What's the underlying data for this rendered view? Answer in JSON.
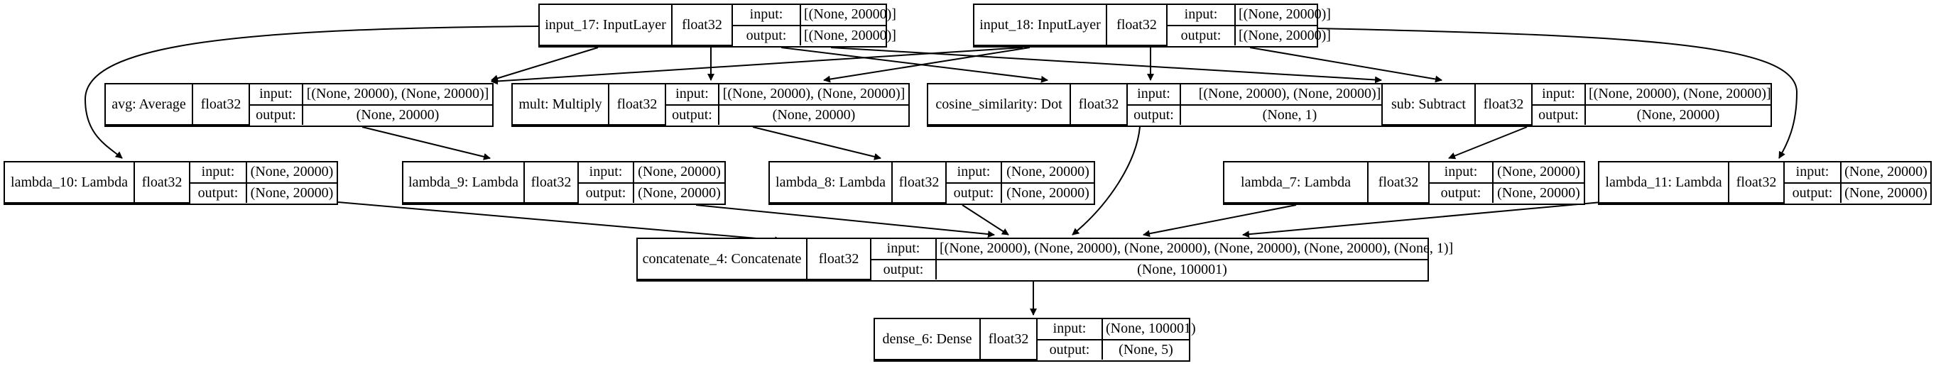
{
  "nodes": {
    "input_17": {
      "name": "input_17: InputLayer",
      "dtype": "float32",
      "in_label": "input:",
      "out_label": "output:",
      "input": "[(None, 20000)]",
      "output": "[(None, 20000)]"
    },
    "input_18": {
      "name": "input_18: InputLayer",
      "dtype": "float32",
      "in_label": "input:",
      "out_label": "output:",
      "input": "[(None, 20000)]",
      "output": "[(None, 20000)]"
    },
    "avg": {
      "name": "avg: Average",
      "dtype": "float32",
      "in_label": "input:",
      "out_label": "output:",
      "input": "[(None, 20000), (None, 20000)]",
      "output": "(None, 20000)"
    },
    "mult": {
      "name": "mult: Multiply",
      "dtype": "float32",
      "in_label": "input:",
      "out_label": "output:",
      "input": "[(None, 20000), (None, 20000)]",
      "output": "(None, 20000)"
    },
    "cosine": {
      "name": "cosine_similarity: Dot",
      "dtype": "float32",
      "in_label": "input:",
      "out_label": "output:",
      "input": "[(None, 20000), (None, 20000)]",
      "output": "(None, 1)"
    },
    "sub": {
      "name": "sub: Subtract",
      "dtype": "float32",
      "in_label": "input:",
      "out_label": "output:",
      "input": "[(None, 20000), (None, 20000)]",
      "output": "(None, 20000)"
    },
    "lambda_10": {
      "name": "lambda_10: Lambda",
      "dtype": "float32",
      "in_label": "input:",
      "out_label": "output:",
      "input": "(None, 20000)",
      "output": "(None, 20000)"
    },
    "lambda_9": {
      "name": "lambda_9: Lambda",
      "dtype": "float32",
      "in_label": "input:",
      "out_label": "output:",
      "input": "(None, 20000)",
      "output": "(None, 20000)"
    },
    "lambda_8": {
      "name": "lambda_8: Lambda",
      "dtype": "float32",
      "in_label": "input:",
      "out_label": "output:",
      "input": "(None, 20000)",
      "output": "(None, 20000)"
    },
    "lambda_7": {
      "name": "lambda_7: Lambda",
      "dtype": "float32",
      "in_label": "input:",
      "out_label": "output:",
      "input": "(None, 20000)",
      "output": "(None, 20000)"
    },
    "lambda_11": {
      "name": "lambda_11: Lambda",
      "dtype": "float32",
      "in_label": "input:",
      "out_label": "output:",
      "input": "(None, 20000)",
      "output": "(None, 20000)"
    },
    "concat": {
      "name": "concatenate_4: Concatenate",
      "dtype": "float32",
      "in_label": "input:",
      "out_label": "output:",
      "input": "[(None, 20000), (None, 20000), (None, 20000), (None, 20000), (None, 20000), (None, 1)]",
      "output": "(None, 100001)"
    },
    "dense": {
      "name": "dense_6: Dense",
      "dtype": "float32",
      "in_label": "input:",
      "out_label": "output:",
      "input": "(None, 100001)",
      "output": "(None, 5)"
    }
  },
  "edges": [
    {
      "from": "input_17",
      "to": "avg"
    },
    {
      "from": "input_17",
      "to": "mult"
    },
    {
      "from": "input_17",
      "to": "cosine"
    },
    {
      "from": "input_17",
      "to": "sub"
    },
    {
      "from": "input_17",
      "to": "lambda_10"
    },
    {
      "from": "input_18",
      "to": "avg"
    },
    {
      "from": "input_18",
      "to": "mult"
    },
    {
      "from": "input_18",
      "to": "cosine"
    },
    {
      "from": "input_18",
      "to": "sub"
    },
    {
      "from": "input_18",
      "to": "lambda_11"
    },
    {
      "from": "avg",
      "to": "lambda_9"
    },
    {
      "from": "mult",
      "to": "lambda_8"
    },
    {
      "from": "sub",
      "to": "lambda_7"
    },
    {
      "from": "cosine",
      "to": "concat"
    },
    {
      "from": "lambda_10",
      "to": "concat"
    },
    {
      "from": "lambda_9",
      "to": "concat"
    },
    {
      "from": "lambda_8",
      "to": "concat"
    },
    {
      "from": "lambda_7",
      "to": "concat"
    },
    {
      "from": "lambda_11",
      "to": "concat"
    },
    {
      "from": "concat",
      "to": "dense"
    }
  ]
}
